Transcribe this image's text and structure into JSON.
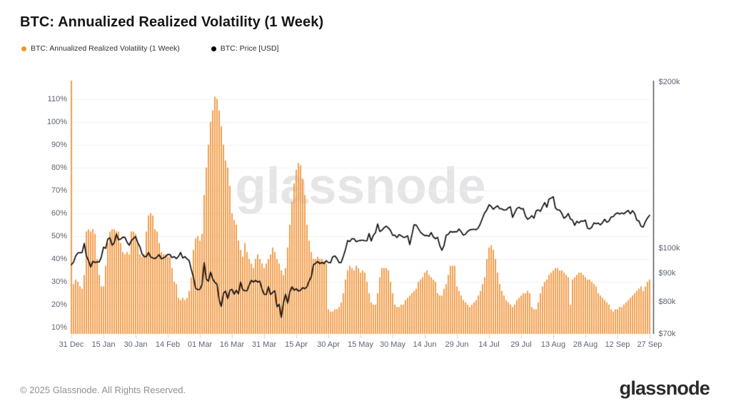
{
  "header": {
    "title": "BTC: Annualized Realized Volatility (1 Week)"
  },
  "legend": {
    "items": [
      {
        "label": "BTC: Annualized Realized Volatility (1 Week)",
        "color": "#f7941d"
      },
      {
        "label": "BTC: Price [USD]",
        "color": "#000000"
      }
    ]
  },
  "watermark": "glassnode",
  "footer": {
    "copyright": "© 2025 Glassnode. All Rights Reserved.",
    "logo_text": "glassnode"
  },
  "chart_data": {
    "type": "bar+line combo, daily points",
    "x": {
      "start": "31 Dec",
      "end": "27 Sep",
      "points": 271,
      "tick_indices": [
        0,
        15,
        30,
        45,
        60,
        75,
        90,
        105,
        120,
        135,
        150,
        165,
        180,
        195,
        210,
        225,
        240,
        255,
        270
      ],
      "tick_labels": [
        "31 Dec",
        "15 Jan",
        "30 Jan",
        "14 Feb",
        "01 Mar",
        "16 Mar",
        "31 Mar",
        "15 Apr",
        "30 Apr",
        "15 May",
        "30 May",
        "14 Jun",
        "29 Jun",
        "14 Jul",
        "29 Jul",
        "13 Aug",
        "28 Aug",
        "12 Sep",
        "27 Sep"
      ]
    },
    "y_left": {
      "title": "Annualized Realized Volatility",
      "scale": "linear",
      "min": 7.2,
      "max": 118,
      "ticks": [
        10,
        20,
        30,
        40,
        50,
        60,
        70,
        80,
        90,
        100,
        110
      ],
      "tick_labels": [
        "10%",
        "20%",
        "30%",
        "40%",
        "50%",
        "60%",
        "70%",
        "80%",
        "90%",
        "100%",
        "110%"
      ]
    },
    "y_right": {
      "title": "BTC Price USD",
      "scale": "log",
      "min": 70,
      "max": 200,
      "ticks": [
        70,
        80,
        90,
        100,
        200
      ],
      "tick_labels": [
        "$70k",
        "$80k",
        "$90k",
        "$100k",
        "$200k"
      ]
    },
    "grid": true,
    "legend_position": "top-left",
    "series": [
      {
        "name": "BTC: Annualized Realized Volatility (1 Week)",
        "type": "bar",
        "axis": "left",
        "unit": "%",
        "color": "#f29a45",
        "values": [
          118,
          29,
          31,
          30,
          28,
          27,
          33,
          52,
          53,
          52,
          53,
          51,
          40,
          33,
          28,
          28,
          37,
          47,
          52,
          53,
          53,
          52,
          52,
          47,
          43,
          42,
          43,
          42,
          52,
          52,
          51,
          47,
          42,
          41,
          42,
          52,
          59,
          60,
          59,
          53,
          52,
          47,
          43,
          42,
          42,
          41,
          41,
          36,
          30,
          29,
          23,
          22,
          23,
          22,
          23,
          26,
          32,
          44,
          49,
          50,
          48,
          51,
          68,
          80,
          90,
          100,
          105,
          111,
          110,
          105,
          98,
          90,
          83,
          80,
          72,
          60,
          57,
          55,
          48,
          44,
          41,
          47,
          43,
          40,
          38,
          36,
          40,
          42,
          40,
          38,
          36,
          38,
          40,
          42,
          45,
          43,
          40,
          38,
          35,
          33,
          36,
          45,
          55,
          65,
          73,
          79,
          82,
          81,
          75,
          68,
          55,
          48,
          43,
          40,
          40,
          41,
          40,
          40,
          39,
          38,
          18,
          17,
          17,
          18,
          18,
          19,
          21,
          25,
          31,
          35,
          37,
          36,
          35,
          37,
          36,
          34,
          35,
          34,
          30,
          25,
          21,
          20,
          20,
          25,
          32,
          36,
          36,
          36,
          35,
          30,
          25,
          20,
          19,
          19,
          20,
          20,
          22,
          23,
          24,
          25,
          26,
          27,
          30,
          31,
          32,
          34,
          35,
          33,
          32,
          31,
          30,
          25,
          24,
          24,
          27,
          29,
          33,
          37,
          37,
          37,
          28,
          26,
          24,
          22,
          21,
          20,
          19,
          20,
          21,
          22,
          24,
          26,
          29,
          32,
          40,
          45,
          46,
          44,
          40,
          34,
          29,
          26,
          24,
          22,
          21,
          20,
          19,
          20,
          22,
          23,
          24,
          25,
          25,
          26,
          25,
          19,
          18,
          18,
          21,
          25,
          28,
          30,
          31,
          33,
          34,
          35,
          36,
          36,
          35,
          35,
          34,
          33,
          32,
          20,
          31,
          32,
          33,
          34,
          34,
          33,
          32,
          31,
          31,
          30,
          29,
          28,
          25,
          24,
          23,
          22,
          21,
          20,
          18,
          17,
          18,
          18,
          19,
          19,
          20,
          21,
          22,
          23,
          24,
          25,
          26,
          27,
          28,
          26,
          28,
          30,
          31
        ]
      },
      {
        "name": "BTC: Price [USD]",
        "type": "line",
        "axis": "right",
        "unit": "USD thousands",
        "color": "#0d0d0d",
        "values": [
          93.4,
          94.4,
          96.9,
          98.1,
          98.2,
          98.3,
          102.1,
          96.9,
          95.0,
          92.5,
          94.7,
          94.3,
          94.5,
          94.5,
          96.5,
          100.5,
          100.0,
          104.0,
          104.5,
          101.3,
          102.3,
          106.1,
          103.7,
          103.9,
          104.8,
          104.7,
          102.6,
          101.3,
          103.3,
          104.2,
          105.0,
          102.4,
          100.7,
          97.7,
          96.6,
          96.6,
          98.3,
          96.5,
          96.1,
          95.8,
          96.5,
          97.4,
          95.7,
          96.1,
          96.6,
          97.5,
          97.5,
          96.2,
          96.6,
          95.8,
          96.7,
          98.3,
          96.1,
          96.6,
          95.7,
          95.0,
          91.5,
          88.6,
          84.7,
          84.2,
          84.3,
          86.0,
          94.2,
          88.0,
          87.2,
          90.6,
          88.0,
          86.8,
          86.1,
          80.7,
          78.5,
          82.9,
          83.7,
          81.1,
          83.9,
          84.3,
          82.6,
          84.0,
          82.7,
          86.9,
          84.2,
          83.8,
          83.8,
          85.8,
          87.5,
          86.9,
          87.5,
          86.9,
          87.2,
          84.4,
          82.6,
          82.5,
          85.2,
          82.5,
          83.2,
          83.8,
          78.4,
          79.2,
          75.0,
          79.6,
          82.6,
          79.6,
          83.4,
          85.2,
          84.0,
          84.5,
          83.7,
          84.0,
          84.9,
          84.5,
          85.2,
          87.3,
          88.8,
          93.4,
          93.9,
          94.7,
          93.8,
          94.3,
          93.8,
          95.0,
          94.3,
          94.2,
          96.5,
          96.9,
          95.9,
          94.2,
          94.3,
          96.8,
          99.6,
          103.3,
          102.9,
          104.1,
          104.1,
          102.8,
          103.2,
          103.4,
          103.5,
          103.2,
          103.2,
          106.4,
          103.1,
          105.6,
          106.8,
          110.7,
          107.3,
          107.8,
          109.0,
          109.7,
          108.9,
          107.8,
          105.6,
          105.7,
          104.6,
          105.9,
          105.4,
          104.7,
          104.8,
          105.4,
          101.6,
          105.8,
          110.3,
          110.2,
          108.6,
          107.0,
          106.1,
          105.5,
          105.5,
          105.2,
          106.8,
          104.9,
          104.1,
          104.7,
          101.2,
          99.2,
          101.2,
          105.6,
          106.1,
          107.3,
          107.0,
          107.2,
          107.1,
          108.4,
          107.2,
          105.7,
          106.1,
          107.3,
          108.0,
          108.2,
          108.3,
          108.1,
          108.9,
          110.9,
          113.5,
          116.0,
          117.4,
          119.9,
          119.1,
          117.7,
          118.7,
          119.4,
          118.0,
          117.9,
          117.3,
          117.4,
          118.4,
          118.9,
          113.8,
          115.9,
          118.1,
          118.7,
          117.9,
          118.0,
          114.5,
          112.9,
          113.5,
          114.6,
          113.4,
          116.9,
          117.4,
          116.7,
          119.0,
          121.0,
          118.7,
          122.8,
          123.3,
          124.0,
          118.4,
          117.4,
          117.3,
          115.7,
          113.4,
          114.1,
          115.6,
          113.1,
          112.5,
          110.1,
          111.9,
          111.2,
          112.1,
          111.9,
          112.5,
          108.8,
          108.4,
          109.2,
          111.2,
          110.8,
          111.1,
          110.3,
          111.3,
          112.9,
          111.5,
          112.0,
          114.0,
          114.1,
          115.4,
          116.0,
          115.4,
          115.9,
          115.5,
          116.4,
          117.1,
          115.5,
          117.0,
          115.7,
          112.5,
          112.1,
          109.6,
          109.3,
          111.7,
          113.5,
          114.8
        ]
      }
    ]
  }
}
